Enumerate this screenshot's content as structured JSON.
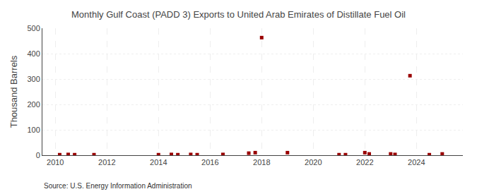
{
  "chart_data": {
    "type": "scatter",
    "title": "Monthly Gulf Coast (PADD 3) Exports to United Arab Emirates of Distillate Fuel Oil",
    "ylabel": "Thousand Barrels",
    "annotation": "Source: U.S. Energy Information Administration",
    "x": [
      2010.17,
      2010.5,
      2010.75,
      2011.5,
      2014.0,
      2014.5,
      2014.75,
      2015.25,
      2015.5,
      2016.5,
      2017.5,
      2017.75,
      2018.0,
      2019.0,
      2021.0,
      2021.25,
      2022.0,
      2022.17,
      2023.0,
      2023.17,
      2023.75,
      2024.5,
      2025.0
    ],
    "values": [
      2,
      3,
      2,
      2,
      2,
      3,
      2,
      3,
      2,
      3,
      8,
      10,
      463,
      10,
      2,
      2,
      10,
      5,
      5,
      3,
      313,
      2,
      5
    ],
    "color": "#990000",
    "marker": "square",
    "xlim": [
      2009.5,
      2025.8
    ],
    "xticks": [
      2010,
      2012,
      2014,
      2016,
      2018,
      2020,
      2022,
      2024
    ],
    "ylim": [
      0,
      500
    ],
    "yticks": [
      0,
      100,
      200,
      300,
      400,
      500
    ],
    "grid": true
  }
}
